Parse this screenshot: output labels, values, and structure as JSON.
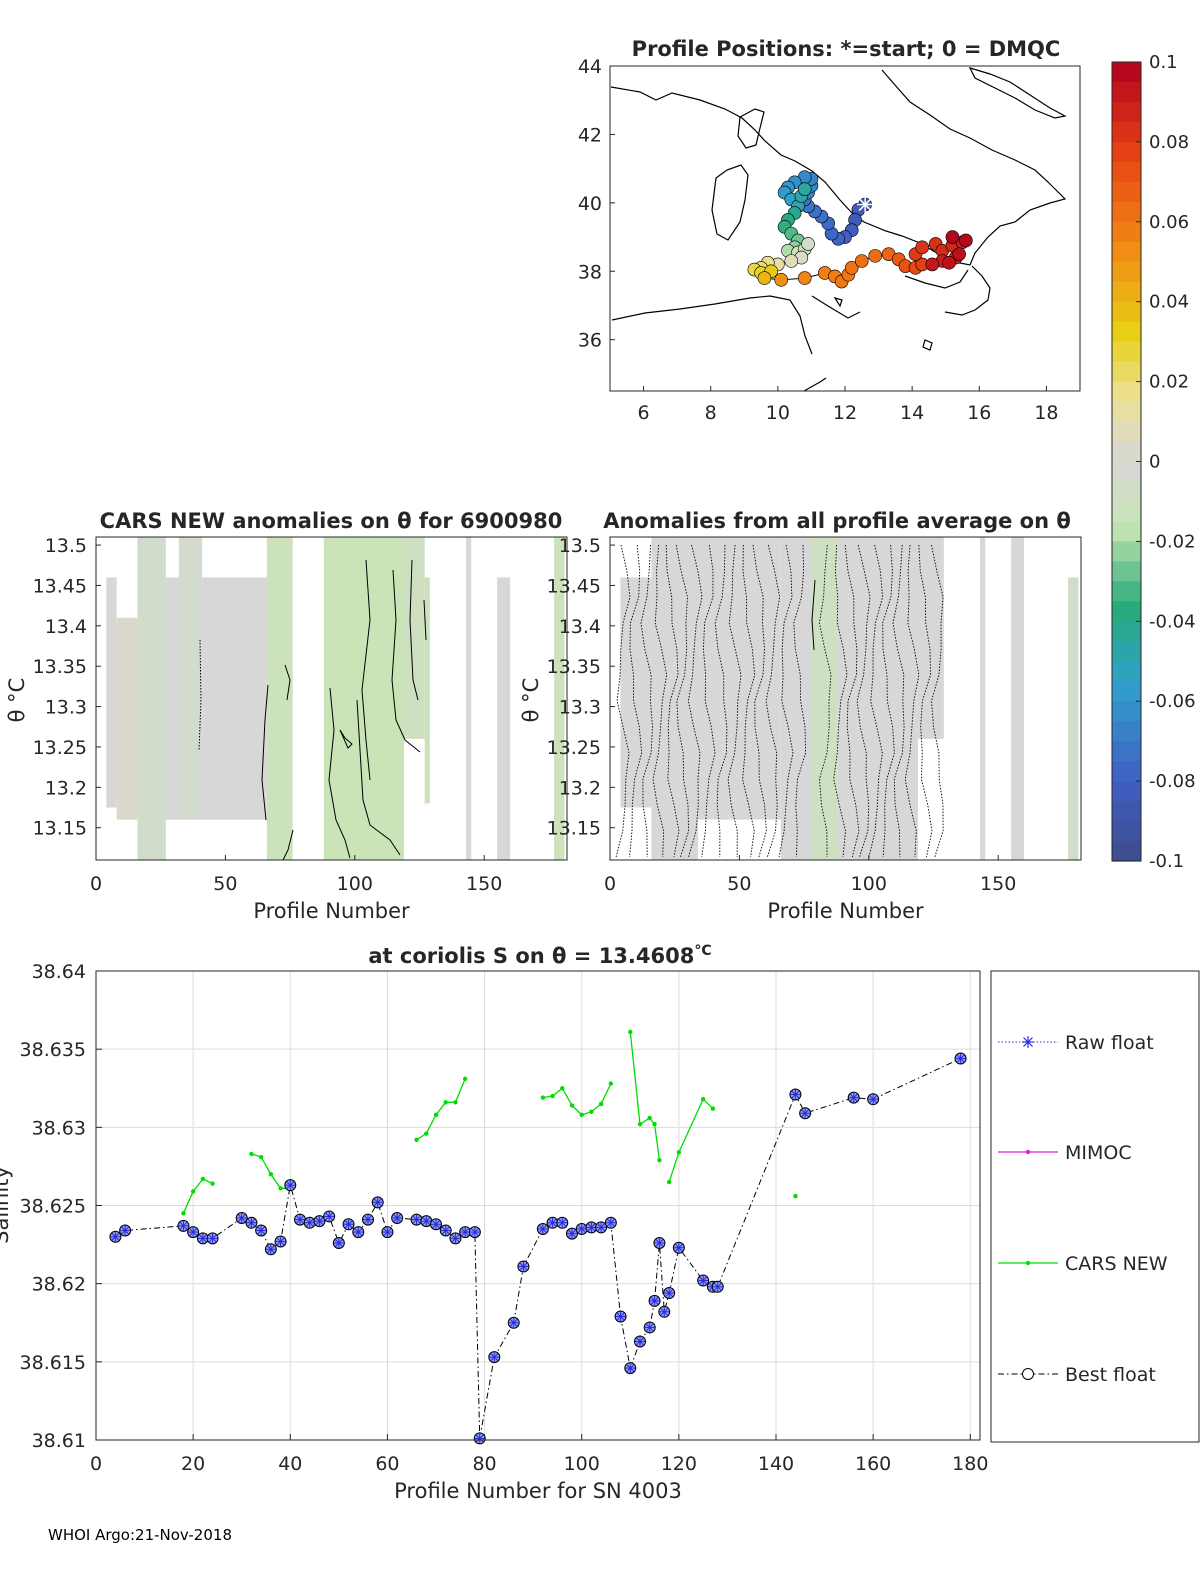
{
  "footer": "WHOI Argo:21-Nov-2018",
  "chart_data": [
    {
      "type": "scatter",
      "id": "map",
      "title": "Profile Positions: *=start; 0 = DMQC",
      "xlim": [
        5,
        19
      ],
      "ylim": [
        34.5,
        44
      ],
      "xticks": [
        "6",
        "8",
        "10",
        "12",
        "14",
        "16",
        "18"
      ],
      "yticks": [
        "36",
        "38",
        "40",
        "42",
        "44"
      ],
      "start_marker": {
        "lon": 12.6,
        "lat": 39.95
      },
      "track": [
        {
          "lon": 12.6,
          "lat": 39.95,
          "c": -0.086
        },
        {
          "lon": 12.4,
          "lat": 39.8,
          "c": -0.085
        },
        {
          "lon": 12.3,
          "lat": 39.5,
          "c": -0.083
        },
        {
          "lon": 12.2,
          "lat": 39.2,
          "c": -0.081
        },
        {
          "lon": 12.0,
          "lat": 39.0,
          "c": -0.08
        },
        {
          "lon": 11.8,
          "lat": 38.95,
          "c": -0.078
        },
        {
          "lon": 11.6,
          "lat": 39.1,
          "c": -0.077
        },
        {
          "lon": 11.5,
          "lat": 39.4,
          "c": -0.076
        },
        {
          "lon": 11.3,
          "lat": 39.6,
          "c": -0.074
        },
        {
          "lon": 11.1,
          "lat": 39.75,
          "c": -0.073
        },
        {
          "lon": 10.9,
          "lat": 39.9,
          "c": -0.071
        },
        {
          "lon": 10.8,
          "lat": 40.1,
          "c": -0.07
        },
        {
          "lon": 10.9,
          "lat": 40.3,
          "c": -0.068
        },
        {
          "lon": 11.0,
          "lat": 40.5,
          "c": -0.067
        },
        {
          "lon": 11.0,
          "lat": 40.7,
          "c": -0.066
        },
        {
          "lon": 10.8,
          "lat": 40.75,
          "c": -0.064
        },
        {
          "lon": 10.5,
          "lat": 40.6,
          "c": -0.062
        },
        {
          "lon": 10.3,
          "lat": 40.45,
          "c": -0.06
        },
        {
          "lon": 10.2,
          "lat": 40.3,
          "c": -0.057
        },
        {
          "lon": 10.4,
          "lat": 40.1,
          "c": -0.054
        },
        {
          "lon": 10.6,
          "lat": 39.9,
          "c": -0.05
        },
        {
          "lon": 10.7,
          "lat": 40.2,
          "c": -0.047
        },
        {
          "lon": 10.8,
          "lat": 40.4,
          "c": -0.045
        },
        {
          "lon": 10.5,
          "lat": 39.7,
          "c": -0.042
        },
        {
          "lon": 10.3,
          "lat": 39.5,
          "c": -0.038
        },
        {
          "lon": 10.2,
          "lat": 39.3,
          "c": -0.035
        },
        {
          "lon": 10.4,
          "lat": 39.1,
          "c": -0.031
        },
        {
          "lon": 10.6,
          "lat": 38.9,
          "c": -0.027
        },
        {
          "lon": 10.5,
          "lat": 38.7,
          "c": -0.023
        },
        {
          "lon": 10.3,
          "lat": 38.6,
          "c": -0.019
        },
        {
          "lon": 10.6,
          "lat": 38.55,
          "c": -0.015
        },
        {
          "lon": 10.8,
          "lat": 38.65,
          "c": -0.01
        },
        {
          "lon": 10.9,
          "lat": 38.8,
          "c": -0.006
        },
        {
          "lon": 10.7,
          "lat": 38.4,
          "c": 0.003
        },
        {
          "lon": 10.4,
          "lat": 38.3,
          "c": 0.008
        },
        {
          "lon": 10.0,
          "lat": 38.2,
          "c": 0.013
        },
        {
          "lon": 9.7,
          "lat": 38.25,
          "c": 0.018
        },
        {
          "lon": 9.5,
          "lat": 38.1,
          "c": 0.022
        },
        {
          "lon": 9.3,
          "lat": 38.05,
          "c": 0.026
        },
        {
          "lon": 9.5,
          "lat": 37.95,
          "c": 0.03
        },
        {
          "lon": 9.8,
          "lat": 38.0,
          "c": 0.034
        },
        {
          "lon": 9.6,
          "lat": 37.8,
          "c": 0.04
        },
        {
          "lon": 10.1,
          "lat": 37.75,
          "c": 0.052
        },
        {
          "lon": 10.8,
          "lat": 37.8,
          "c": 0.055
        },
        {
          "lon": 11.4,
          "lat": 37.95,
          "c": 0.057
        },
        {
          "lon": 11.7,
          "lat": 37.85,
          "c": 0.058
        },
        {
          "lon": 11.9,
          "lat": 37.7,
          "c": 0.059
        },
        {
          "lon": 12.1,
          "lat": 37.9,
          "c": 0.06
        },
        {
          "lon": 12.2,
          "lat": 38.1,
          "c": 0.061
        },
        {
          "lon": 12.5,
          "lat": 38.3,
          "c": 0.062
        },
        {
          "lon": 12.9,
          "lat": 38.45,
          "c": 0.063
        },
        {
          "lon": 13.3,
          "lat": 38.5,
          "c": 0.066
        },
        {
          "lon": 13.6,
          "lat": 38.35,
          "c": 0.069
        },
        {
          "lon": 13.8,
          "lat": 38.15,
          "c": 0.072
        },
        {
          "lon": 14.1,
          "lat": 38.1,
          "c": 0.075
        },
        {
          "lon": 14.3,
          "lat": 38.2,
          "c": 0.078
        },
        {
          "lon": 14.1,
          "lat": 38.5,
          "c": 0.08
        },
        {
          "lon": 14.3,
          "lat": 38.7,
          "c": 0.082
        },
        {
          "lon": 14.7,
          "lat": 38.8,
          "c": 0.083
        },
        {
          "lon": 14.9,
          "lat": 38.6,
          "c": 0.085
        },
        {
          "lon": 15.2,
          "lat": 38.75,
          "c": 0.086
        },
        {
          "lon": 15.5,
          "lat": 38.85,
          "c": 0.088
        },
        {
          "lon": 15.3,
          "lat": 38.4,
          "c": 0.089
        },
        {
          "lon": 14.9,
          "lat": 38.3,
          "c": 0.09
        },
        {
          "lon": 14.6,
          "lat": 38.2,
          "c": 0.092
        },
        {
          "lon": 15.1,
          "lat": 38.25,
          "c": 0.094
        },
        {
          "lon": 15.4,
          "lat": 38.5,
          "c": 0.095
        },
        {
          "lon": 15.6,
          "lat": 38.9,
          "c": 0.097
        },
        {
          "lon": 15.2,
          "lat": 39.0,
          "c": 0.098
        }
      ]
    },
    {
      "type": "colorbar",
      "id": "colorbar",
      "range": [
        -0.1,
        0.1
      ],
      "tick_labels": [
        "0.1",
        "0.08",
        "0.06",
        "0.04",
        "0.02",
        "0",
        "-0.02",
        "-0.04",
        "-0.06",
        "-0.08",
        "-0.1"
      ]
    },
    {
      "type": "heatmap",
      "id": "cars_anom",
      "title": "CARS NEW anomalies on θ for 6900980",
      "xlabel": "Profile Number",
      "ylabel": "θ °C",
      "xlim": [
        0,
        182
      ],
      "ylim": [
        13.11,
        13.51
      ],
      "xticks": [
        "0",
        "50",
        "100",
        "150"
      ],
      "yticks": [
        "13.15",
        "13.2",
        "13.25",
        "13.3",
        "13.35",
        "13.4",
        "13.45",
        "13.5"
      ],
      "columns": [
        {
          "x0": 4,
          "x1": 8,
          "lo": 13.175,
          "hi": 13.46,
          "c": 0.0
        },
        {
          "x0": 8,
          "x1": 16,
          "lo": 13.16,
          "hi": 13.41,
          "c": 0.003
        },
        {
          "x0": 16,
          "x1": 27,
          "lo": 13.11,
          "hi": 13.51,
          "c": -0.006
        },
        {
          "x0": 27,
          "x1": 32,
          "lo": 13.16,
          "hi": 13.46,
          "c": 0.0
        },
        {
          "x0": 32,
          "x1": 41,
          "lo": 13.16,
          "hi": 13.51,
          "c": -0.004
        },
        {
          "x0": 41,
          "x1": 66,
          "lo": 13.16,
          "hi": 13.46,
          "c": 0.0
        },
        {
          "x0": 66,
          "x1": 76,
          "lo": 13.11,
          "hi": 13.51,
          "c": -0.012
        },
        {
          "x0": 88,
          "x1": 119,
          "lo": 13.11,
          "hi": 13.51,
          "c": -0.014
        },
        {
          "x0": 119,
          "x1": 127,
          "lo": 13.26,
          "hi": 13.51,
          "c": -0.01
        },
        {
          "x0": 127,
          "x1": 129,
          "lo": 13.18,
          "hi": 13.46,
          "c": -0.012
        },
        {
          "x0": 143,
          "x1": 145,
          "lo": 13.11,
          "hi": 13.51,
          "c": 0.0
        },
        {
          "x0": 155,
          "x1": 160,
          "lo": 13.11,
          "hi": 13.46,
          "c": 0.0
        },
        {
          "x0": 177,
          "x1": 181,
          "lo": 13.11,
          "hi": 13.51,
          "c": -0.012
        }
      ]
    },
    {
      "type": "heatmap",
      "id": "avg_anom",
      "title": "Anomalies from all profile average on θ",
      "xlabel": "Profile Number",
      "ylabel": "θ °C",
      "xlim": [
        0,
        182
      ],
      "ylim": [
        13.11,
        13.51
      ],
      "xticks": [
        "0",
        "50",
        "100",
        "150"
      ],
      "yticks": [
        "13.15",
        "13.2",
        "13.25",
        "13.3",
        "13.35",
        "13.4",
        "13.45",
        "13.5"
      ],
      "columns": [
        {
          "x0": 4,
          "x1": 16,
          "lo": 13.175,
          "hi": 13.46,
          "c": 0.0
        },
        {
          "x0": 16,
          "x1": 34,
          "lo": 13.11,
          "hi": 13.51,
          "c": 0.0
        },
        {
          "x0": 34,
          "x1": 44,
          "lo": 13.16,
          "hi": 13.51,
          "c": 0.0
        },
        {
          "x0": 44,
          "x1": 66,
          "lo": 13.16,
          "hi": 13.51,
          "c": 0.0
        },
        {
          "x0": 66,
          "x1": 78,
          "lo": 13.11,
          "hi": 13.51,
          "c": 0.0
        },
        {
          "x0": 78,
          "x1": 88,
          "lo": 13.11,
          "hi": 13.51,
          "c": -0.01
        },
        {
          "x0": 88,
          "x1": 119,
          "lo": 13.11,
          "hi": 13.51,
          "c": 0.0
        },
        {
          "x0": 119,
          "x1": 129,
          "lo": 13.26,
          "hi": 13.51,
          "c": 0.0
        },
        {
          "x0": 143,
          "x1": 145,
          "lo": 13.11,
          "hi": 13.51,
          "c": 0.0
        },
        {
          "x0": 155,
          "x1": 160,
          "lo": 13.11,
          "hi": 13.51,
          "c": 0.0
        },
        {
          "x0": 177,
          "x1": 181,
          "lo": 13.11,
          "hi": 13.46,
          "c": -0.006
        }
      ]
    },
    {
      "type": "line",
      "id": "salinity",
      "title": "at coriolis S on θ = 13.4608",
      "title_unit": "°C",
      "xlabel": "Profile Number for SN 4003",
      "ylabel": "Salinity",
      "xlim": [
        0,
        182
      ],
      "ylim": [
        38.61,
        38.64
      ],
      "xticks": [
        "0",
        "20",
        "40",
        "60",
        "80",
        "100",
        "120",
        "140",
        "160",
        "180"
      ],
      "yticks": [
        "38.61",
        "38.615",
        "38.62",
        "38.625",
        "38.63",
        "38.635",
        "38.64"
      ],
      "grid": true,
      "legend": [
        "Raw float",
        "MIMOC",
        "CARS NEW",
        "Best float"
      ],
      "series": [
        {
          "name": "Raw float",
          "x": [
            4,
            6,
            18,
            20,
            22,
            24,
            30,
            32,
            34,
            36,
            38,
            40,
            42,
            44,
            46,
            48,
            50,
            52,
            54,
            56,
            58,
            60,
            62,
            66,
            68,
            70,
            72,
            74,
            76,
            78,
            79,
            82,
            86,
            88,
            92,
            94,
            96,
            98,
            100,
            102,
            104,
            106,
            108,
            110,
            112,
            114,
            115,
            116,
            117,
            118,
            120,
            125,
            127,
            128,
            144,
            146,
            156,
            160,
            178
          ],
          "y": [
            38.623,
            38.6234,
            38.6237,
            38.6233,
            38.6229,
            38.6229,
            38.6242,
            38.6239,
            38.6234,
            38.6222,
            38.6227,
            38.6263,
            38.6241,
            38.6239,
            38.624,
            38.6243,
            38.6226,
            38.6238,
            38.6233,
            38.6241,
            38.6252,
            38.6233,
            38.6242,
            38.6241,
            38.624,
            38.6238,
            38.6234,
            38.6229,
            38.6233,
            38.6233,
            38.6101,
            38.6153,
            38.6175,
            38.6211,
            38.6235,
            38.6239,
            38.6239,
            38.6232,
            38.6235,
            38.6236,
            38.6236,
            38.6239,
            38.6179,
            38.6146,
            38.6163,
            38.6172,
            38.6189,
            38.6226,
            38.6182,
            38.6194,
            38.6223,
            38.6202,
            38.6198,
            38.6198,
            38.6321,
            38.6309,
            38.6319,
            38.6318,
            38.6344
          ]
        },
        {
          "name": "MIMOC",
          "x": [],
          "y": []
        },
        {
          "name": "CARS NEW",
          "segments": [
            {
              "x": [
                18,
                20,
                22,
                24
              ],
              "y": [
                38.6245,
                38.6259,
                38.6267,
                38.6264
              ]
            },
            {
              "x": [
                32,
                34,
                36,
                38,
                40
              ],
              "y": [
                38.6283,
                38.6281,
                38.627,
                38.6261,
                38.6261
              ]
            },
            {
              "x": [
                66,
                68,
                70,
                72,
                74,
                76
              ],
              "y": [
                38.6292,
                38.6296,
                38.6308,
                38.6316,
                38.6316,
                38.6331
              ]
            },
            {
              "x": [
                92,
                94,
                96,
                98,
                100,
                102,
                104,
                106
              ],
              "y": [
                38.6319,
                38.632,
                38.6325,
                38.6314,
                38.6308,
                38.631,
                38.6315,
                38.6328
              ]
            },
            {
              "x": [
                110,
                112,
                114,
                115,
                116
              ],
              "y": [
                38.6361,
                38.6302,
                38.6306,
                38.6302,
                38.6279
              ]
            },
            {
              "x": [
                118,
                120,
                125,
                127
              ],
              "y": [
                38.6265,
                38.6284,
                38.6318,
                38.6312
              ]
            },
            {
              "x": [
                144
              ],
              "y": [
                38.6256
              ]
            }
          ]
        },
        {
          "name": "Best float",
          "x": "same as Raw float",
          "y": "same as Raw float"
        }
      ]
    }
  ]
}
